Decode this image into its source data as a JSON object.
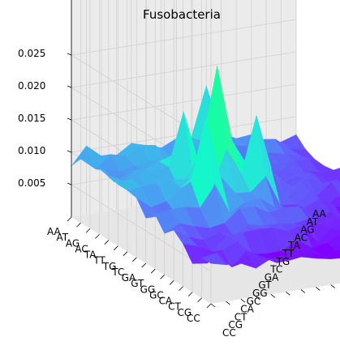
{
  "chart_data": {
    "type": "surface3d",
    "title": "Fusobacteria",
    "colormap": "rainbow",
    "zlim": [
      0.0,
      0.028
    ],
    "z_ticks": [
      0.005,
      0.01,
      0.015,
      0.02,
      0.025
    ],
    "z_tick_labels": [
      "0.005",
      "0.010",
      "0.015",
      "0.020",
      "0.025"
    ],
    "x_categories": [
      "AA",
      "AT",
      "AG",
      "AC",
      "TA",
      "TT",
      "TG",
      "TC",
      "GA",
      "GT",
      "GG",
      "GC",
      "CA",
      "CT",
      "CG",
      "CC"
    ],
    "y_categories": [
      "AA",
      "AT",
      "AG",
      "AC",
      "TA",
      "TT",
      "TG",
      "TC",
      "GA",
      "GT",
      "GG",
      "GC",
      "CA",
      "CT",
      "CG",
      "CC"
    ],
    "peaks": [
      {
        "x": "TG",
        "y": "TG",
        "z": 0.0265
      },
      {
        "x": "GA",
        "y": "TA",
        "z": 0.021
      },
      {
        "x": "TC",
        "y": "GA",
        "z": 0.019
      },
      {
        "x": "AA",
        "y": "GT",
        "z": 0.017
      },
      {
        "x": "TA",
        "y": "TT",
        "z": 0.018
      }
    ],
    "grid": true
  }
}
